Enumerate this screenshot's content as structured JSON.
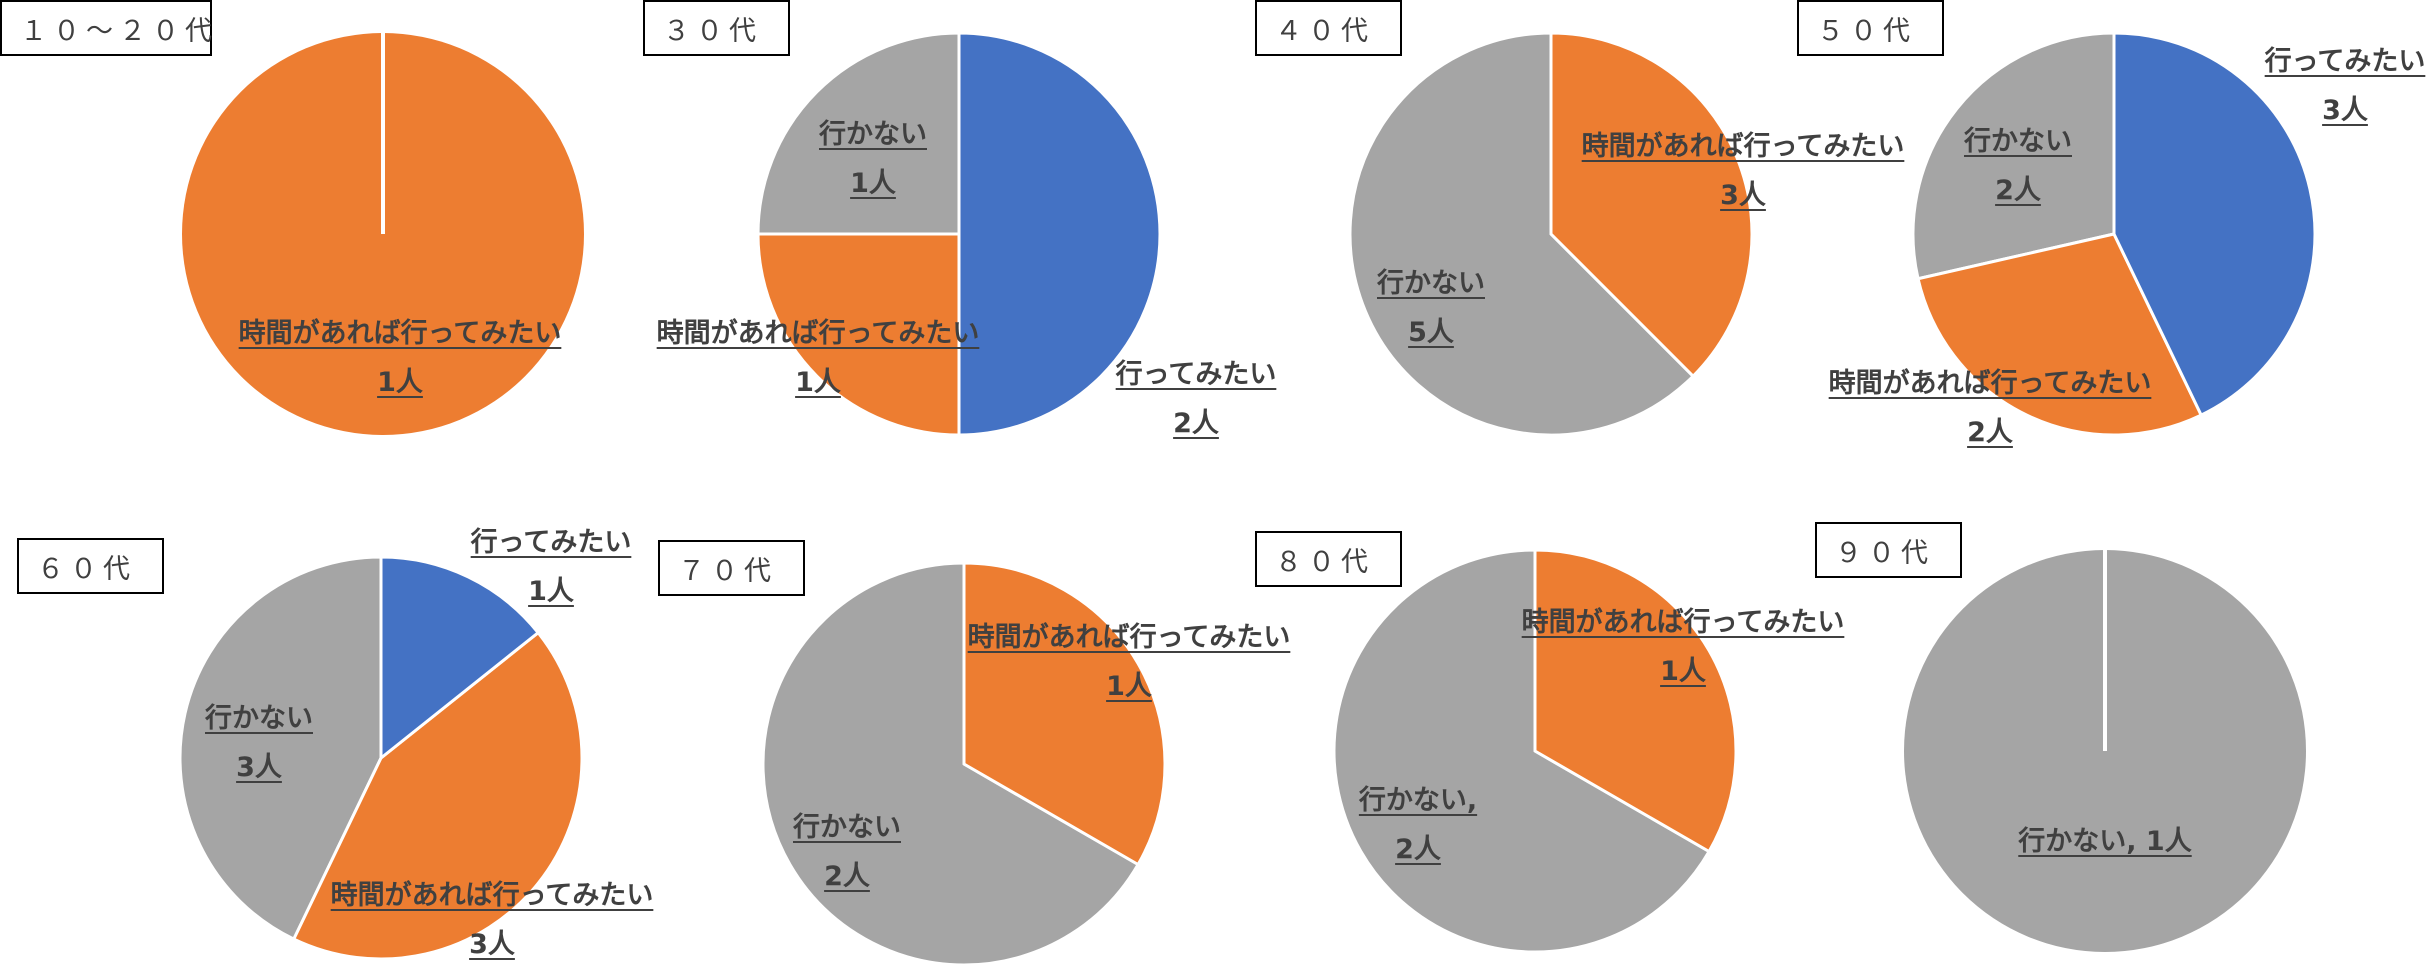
{
  "colors": {
    "行ってみたい": "#4472C4",
    "時間があれば行ってみたい": "#ED7D31",
    "行かない": "#A5A5A5"
  },
  "chart_data": [
    {
      "type": "pie",
      "title": "１０～２０代",
      "slices": [
        {
          "label": "時間があれば行ってみたい",
          "value": 1,
          "line1": "時間があれば行ってみたい",
          "line2": "1人"
        }
      ]
    },
    {
      "type": "pie",
      "title": "３０代",
      "slices": [
        {
          "label": "行ってみたい",
          "value": 2,
          "line1": "行ってみたい",
          "line2": "2人"
        },
        {
          "label": "時間があれば行ってみたい",
          "value": 1,
          "line1": "時間があれば行ってみたい",
          "line2": "1人"
        },
        {
          "label": "行かない",
          "value": 1,
          "line1": "行かない",
          "line2": "1人"
        }
      ]
    },
    {
      "type": "pie",
      "title": "４０代",
      "slices": [
        {
          "label": "時間があれば行ってみたい",
          "value": 3,
          "line1": "時間があれば行ってみたい",
          "line2": "3人"
        },
        {
          "label": "行かない",
          "value": 5,
          "line1": "行かない",
          "line2": "5人"
        }
      ]
    },
    {
      "type": "pie",
      "title": "５０代",
      "slices": [
        {
          "label": "行ってみたい",
          "value": 3,
          "line1": "行ってみたい",
          "line2": "3人"
        },
        {
          "label": "時間があれば行ってみたい",
          "value": 2,
          "line1": "時間があれば行ってみたい",
          "line2": "2人"
        },
        {
          "label": "行かない",
          "value": 2,
          "line1": "行かない",
          "line2": "2人"
        }
      ]
    },
    {
      "type": "pie",
      "title": "６０代",
      "slices": [
        {
          "label": "行ってみたい",
          "value": 1,
          "line1": "行ってみたい",
          "line2": "1人"
        },
        {
          "label": "時間があれば行ってみたい",
          "value": 3,
          "line1": "時間があれば行ってみたい",
          "line2": "3人"
        },
        {
          "label": "行かない",
          "value": 3,
          "line1": "行かない",
          "line2": "3人"
        }
      ]
    },
    {
      "type": "pie",
      "title": "７０代",
      "slices": [
        {
          "label": "時間があれば行ってみたい",
          "value": 1,
          "line1": "時間があれば行ってみたい",
          "line2": "1人"
        },
        {
          "label": "行かない",
          "value": 2,
          "line1": "行かない",
          "line2": "2人"
        }
      ]
    },
    {
      "type": "pie",
      "title": "８０代",
      "slices": [
        {
          "label": "時間があれば行ってみたい",
          "value": 1,
          "line1": "時間があれば行ってみたい",
          "line2": "1人"
        },
        {
          "label": "行かない",
          "value": 2,
          "line1": "行かない,",
          "line2": "2人"
        }
      ]
    },
    {
      "type": "pie",
      "title": "９０代",
      "slices": [
        {
          "label": "行かない",
          "value": 1,
          "line1": "行かない, 1人",
          "line2": ""
        }
      ]
    }
  ]
}
